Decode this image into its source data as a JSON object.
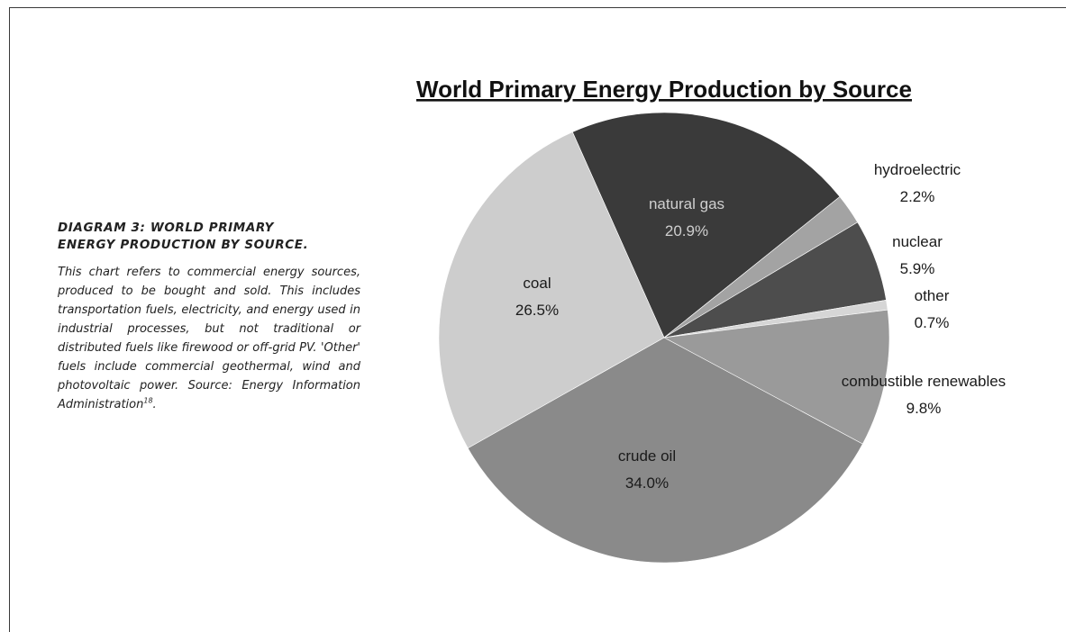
{
  "caption": {
    "heading_line1": "DIAGRAM 3: WORLD PRIMARY",
    "heading_line2": "ENERGY PRODUCTION BY SOURCE.",
    "body_text": "This chart refers to commercial energy sources, produced to be bought and sold. This includes transportation fuels, electricity, and energy used in industrial processes, but not traditional or distributed fuels like firewood or off-grid PV. 'Other' fuels include commercial geothermal, wind and photovoltaic power. Source: Energy Information Administration",
    "footnote_ref": "18",
    "trailing": "."
  },
  "chart_data": {
    "type": "pie",
    "title": "World Primary Energy Production by Source",
    "start_angle_deg": -24,
    "slices": [
      {
        "name": "natural gas",
        "value": 20.9,
        "value_label": "20.9%",
        "color": "#3a3a3a",
        "label_color": "#cfcfcf"
      },
      {
        "name": "hydroelectric",
        "value": 2.2,
        "value_label": "2.2%",
        "color": "#a3a3a3",
        "label_color": "#1a1a1a"
      },
      {
        "name": "nuclear",
        "value": 5.9,
        "value_label": "5.9%",
        "color": "#4d4d4d",
        "label_color": "#1a1a1a"
      },
      {
        "name": "other",
        "value": 0.7,
        "value_label": "0.7%",
        "color": "#d6d6d6",
        "label_color": "#1a1a1a"
      },
      {
        "name": "combustible renewables",
        "value": 9.8,
        "value_label": "9.8%",
        "color": "#9a9a9a",
        "label_color": "#1a1a1a"
      },
      {
        "name": "crude oil",
        "value": 34.0,
        "value_label": "34.0%",
        "color": "#8a8a8a",
        "label_color": "#1a1a1a"
      },
      {
        "name": "coal",
        "value": 26.5,
        "value_label": "26.5%",
        "color": "#cdcdcd",
        "label_color": "#1a1a1a"
      }
    ]
  }
}
